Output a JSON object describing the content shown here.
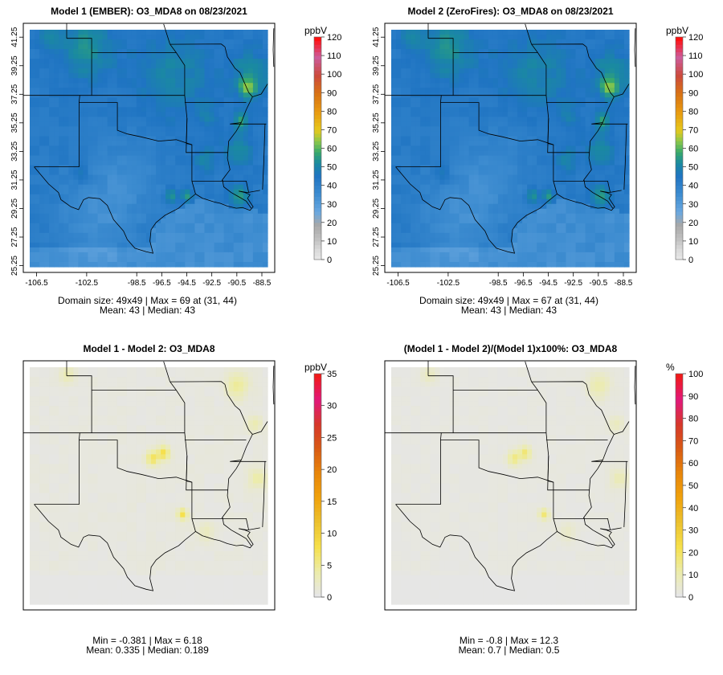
{
  "colorbar_scale": [
    "#e6e6e6",
    "#ececa8",
    "#f6e04a",
    "#ecc12e",
    "#f0a20c",
    "#e8860a",
    "#d85b14",
    "#d6382a",
    "#e2187a",
    "#f01a1a"
  ],
  "conc_scale": [
    {
      "v": 0,
      "c": "#e6e6e6"
    },
    {
      "v": 5,
      "c": "#d8d8d8"
    },
    {
      "v": 10,
      "c": "#c2c2c2"
    },
    {
      "v": 18,
      "c": "#a8a8a8"
    },
    {
      "v": 25,
      "c": "#6aa8e0"
    },
    {
      "v": 35,
      "c": "#3d8cd0"
    },
    {
      "v": 45,
      "c": "#1f74c2"
    },
    {
      "v": 52,
      "c": "#1a8aa0"
    },
    {
      "v": 58,
      "c": "#3aaa6a"
    },
    {
      "v": 64,
      "c": "#8cc84a"
    },
    {
      "v": 70,
      "c": "#e6c81c"
    },
    {
      "v": 80,
      "c": "#e89a10"
    },
    {
      "v": 90,
      "c": "#d87214"
    },
    {
      "v": 100,
      "c": "#cc4a3c"
    },
    {
      "v": 110,
      "c": "#cc5c9c"
    },
    {
      "v": 120,
      "c": "#ff1010"
    }
  ],
  "lon_ticks": [
    "-106.5",
    "-102.5",
    "-98.5",
    "-96.5",
    "-94.5",
    "-92.5",
    "-90.5",
    "-88.5"
  ],
  "lat_ticks": [
    "25.25",
    "27.25",
    "29.25",
    "31.25",
    "33.25",
    "35.25",
    "37.25",
    "39.25",
    "41.25"
  ],
  "panels": [
    {
      "id": "model1",
      "title": "Model 1 (EMBER): O3_MDA8 on 08/23/2021",
      "unit": "ppbV",
      "show_axes": true,
      "field": "conc",
      "max_value": 69,
      "colorbar_ticks": [
        "0",
        "10",
        "20",
        "30",
        "40",
        "50",
        "60",
        "70",
        "80",
        "90",
        "100",
        "110",
        "120"
      ],
      "colorbar_max": 120,
      "stats_line1": "Domain size: 49x49 | Max = 69 at (31, 44)",
      "stats_line2": "Mean: 43 |  Median: 43"
    },
    {
      "id": "model2",
      "title": "Model 2 (ZeroFires): O3_MDA8 on 08/23/2021",
      "unit": "ppbV",
      "show_axes": true,
      "field": "conc",
      "max_value": 67,
      "colorbar_ticks": [
        "0",
        "10",
        "20",
        "30",
        "40",
        "50",
        "60",
        "70",
        "80",
        "90",
        "100",
        "110",
        "120"
      ],
      "colorbar_max": 120,
      "stats_line1": "Domain size: 49x49 | Max = 67 at (31, 44)",
      "stats_line2": "Mean: 43 |  Median: 43"
    },
    {
      "id": "diff",
      "title": "Model 1 - Model 2: O3_MDA8",
      "unit": "ppbV",
      "show_axes": false,
      "field": "diff",
      "colorbar_ticks": [
        "0",
        "5",
        "10",
        "15",
        "20",
        "25",
        "30",
        "35"
      ],
      "colorbar_max": 35,
      "stats_line1": "Min = -0.381 | Max = 6.18",
      "stats_line2": "Mean: 0.335 |  Median: 0.189"
    },
    {
      "id": "pctdiff",
      "title": "(Model 1 - Model 2)/(Model 1)x100%: O3_MDA8",
      "unit": "%",
      "show_axes": false,
      "field": "pct",
      "colorbar_ticks": [
        "0",
        "10",
        "20",
        "30",
        "40",
        "50",
        "60",
        "70",
        "80",
        "90",
        "100"
      ],
      "colorbar_max": 100,
      "stats_line1": "Min = -0.8 | Max = 12.3",
      "stats_line2": "Mean: 0.7 |  Median: 0.5"
    }
  ]
}
